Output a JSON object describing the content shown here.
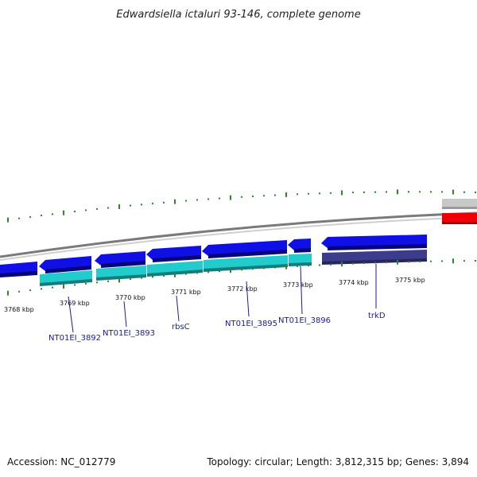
{
  "title": "Edwardsiella ictaluri 93-146, complete genome",
  "footer": {
    "accession": "Accession: NC_012779",
    "summary": "Topology: circular; Length: 3,812,315 bp; Genes: 3,894"
  },
  "colors": {
    "gene": "#1010e6",
    "cds": "#22cccc",
    "trkD_cds": "#3c3c8c",
    "rna": "#ee0000",
    "other": "#c8c8c8",
    "backbone": "#888888",
    "tick": "#2a8a2a",
    "label": "#1a1aa6"
  },
  "ruler": {
    "labels": [
      "3768 kbp",
      "3769 kbp",
      "3770 kbp",
      "3771 kbp",
      "3772 kbp",
      "3773 kbp",
      "3774 kbp",
      "3775 kbp"
    ]
  },
  "genes": [
    {
      "label": "NT01EI_3892",
      "strand": "reverse"
    },
    {
      "label": "NT01EI_3893",
      "strand": "reverse"
    },
    {
      "label": "rbsC",
      "strand": "reverse"
    },
    {
      "label": "NT01EI_3895",
      "strand": "reverse"
    },
    {
      "label": "NT01EI_3896",
      "strand": "reverse"
    },
    {
      "label": "trkD",
      "strand": "reverse"
    }
  ]
}
